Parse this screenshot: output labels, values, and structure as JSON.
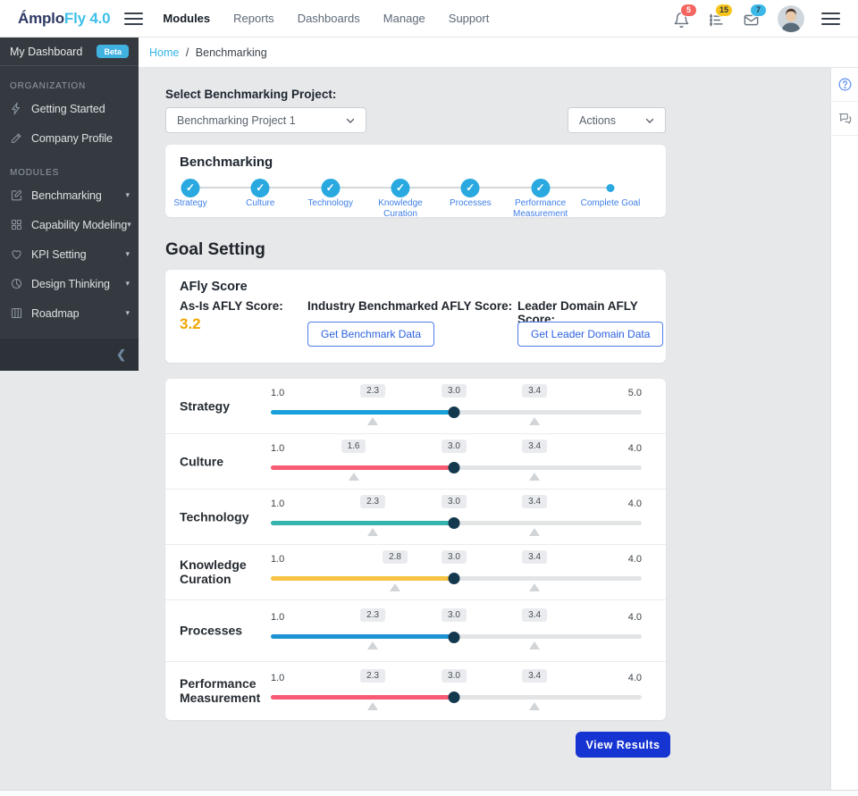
{
  "topnav": {
    "logo_part1": "Ámplo",
    "logo_part2": "Fly 4.0",
    "nav_items": [
      {
        "label": "Modules",
        "active": true
      },
      {
        "label": "Reports",
        "active": false
      },
      {
        "label": "Dashboards",
        "active": false
      },
      {
        "label": "Manage",
        "active": false
      },
      {
        "label": "Support",
        "active": false
      }
    ],
    "notifications": [
      {
        "icon": "bell-icon",
        "count": "5",
        "badge_color": "#f4655f",
        "text_color": "#ffffff"
      },
      {
        "icon": "checklist-icon",
        "count": "15",
        "badge_color": "#f8c51c",
        "text_color": "#34393f"
      },
      {
        "icon": "mail-icon",
        "count": "7",
        "badge_color": "#3bb8e8",
        "text_color": "#34393f"
      }
    ]
  },
  "breadcrumb": {
    "home": "Home",
    "separator": "/",
    "current": "Benchmarking"
  },
  "sidebar": {
    "dashboard_label": "My Dashboard",
    "beta_badge": "Beta",
    "sections": [
      {
        "title": "ORGANIZATION",
        "items": [
          {
            "label": "Getting Started",
            "icon": "lightning-icon",
            "caret": false
          },
          {
            "label": "Company Profile",
            "icon": "pencil-icon",
            "caret": false
          }
        ]
      },
      {
        "title": "MODULES",
        "items": [
          {
            "label": "Benchmarking",
            "icon": "edit-square-icon",
            "caret": true
          },
          {
            "label": "Capability Modeling",
            "icon": "grid-icon",
            "caret": true
          },
          {
            "label": "KPI Setting",
            "icon": "kpi-icon",
            "caret": true
          },
          {
            "label": "Design Thinking",
            "icon": "pie-icon",
            "caret": true
          },
          {
            "label": "Roadmap",
            "icon": "kanban-icon",
            "caret": true
          }
        ]
      }
    ]
  },
  "project_select": {
    "label": "Select Benchmarking Project:",
    "value": "Benchmarking Project 1"
  },
  "actions_select": {
    "value": "Actions"
  },
  "stepper": {
    "title": "Benchmarking",
    "accent_color": "#29a9e0",
    "steps": [
      {
        "label": "Strategy",
        "state": "done"
      },
      {
        "label": "Culture",
        "state": "done"
      },
      {
        "label": "Technology",
        "state": "done"
      },
      {
        "label": "Knowledge Curation",
        "state": "done"
      },
      {
        "label": "Processes",
        "state": "done"
      },
      {
        "label": "Performance Measurement",
        "state": "done"
      },
      {
        "label": "Complete Goal",
        "state": "current"
      }
    ]
  },
  "goal_setting": {
    "heading": "Goal Setting",
    "afly": {
      "title": "AFly Score",
      "as_is_label": "As-Is AFLY Score:",
      "as_is_value": "3.2",
      "as_is_color": "#f0a500",
      "industry_label": "Industry Benchmarked AFLY Score:",
      "industry_button": "Get Benchmark Data",
      "leader_label": "Leader Domain AFLY Score:",
      "leader_button": "Get Leader Domain Data"
    }
  },
  "sliders": {
    "handle_color": "#14384e",
    "rows": [
      {
        "label": "Strategy",
        "min": "1.0",
        "max": "5.0",
        "value": 3.0,
        "color": "#18a0da",
        "handle_pos": 49.4,
        "markers": [
          {
            "value": "2.3",
            "pos": 27.5,
            "triangle": true
          },
          {
            "value": "3.0",
            "pos": 49.4,
            "triangle": false
          },
          {
            "value": "3.4",
            "pos": 71.1,
            "triangle": true
          }
        ]
      },
      {
        "label": "Culture",
        "min": "1.0",
        "max": "4.0",
        "value": 3.0,
        "color": "#f85b73",
        "handle_pos": 49.4,
        "markers": [
          {
            "value": "1.6",
            "pos": 22.3,
            "triangle": true
          },
          {
            "value": "3.0",
            "pos": 49.4,
            "triangle": false
          },
          {
            "value": "3.4",
            "pos": 71.1,
            "triangle": true
          }
        ]
      },
      {
        "label": "Technology",
        "min": "1.0",
        "max": "4.0",
        "value": 3.0,
        "color": "#35b3ad",
        "handle_pos": 49.4,
        "markers": [
          {
            "value": "2.3",
            "pos": 27.5,
            "triangle": true
          },
          {
            "value": "3.0",
            "pos": 49.4,
            "triangle": false
          },
          {
            "value": "3.4",
            "pos": 71.1,
            "triangle": true
          }
        ]
      },
      {
        "label": "Knowledge Curation",
        "min": "1.0",
        "max": "4.0",
        "value": 3.0,
        "color": "#f6c343",
        "handle_pos": 49.4,
        "markers": [
          {
            "value": "2.8",
            "pos": 33.5,
            "triangle": true
          },
          {
            "value": "3.0",
            "pos": 49.4,
            "triangle": false
          },
          {
            "value": "3.4",
            "pos": 71.1,
            "triangle": true
          }
        ]
      },
      {
        "label": "Processes",
        "min": "1.0",
        "max": "4.0",
        "value": 3.0,
        "color": "#1d93d4",
        "handle_pos": 49.4,
        "markers": [
          {
            "value": "2.3",
            "pos": 27.5,
            "triangle": true
          },
          {
            "value": "3.0",
            "pos": 49.4,
            "triangle": false
          },
          {
            "value": "3.4",
            "pos": 71.1,
            "triangle": true
          }
        ]
      },
      {
        "label": "Performance Measurement",
        "min": "1.0",
        "max": "4.0",
        "value": 3.0,
        "color": "#f85b73",
        "handle_pos": 49.4,
        "markers": [
          {
            "value": "2.3",
            "pos": 27.5,
            "triangle": true
          },
          {
            "value": "3.0",
            "pos": 49.4,
            "triangle": false
          },
          {
            "value": "3.4",
            "pos": 71.1,
            "triangle": true
          }
        ]
      }
    ]
  },
  "view_results": {
    "label": "View Results",
    "color": "#1634d1"
  },
  "right_rail": {
    "icons": [
      {
        "icon": "help-icon"
      },
      {
        "icon": "chat-icon"
      }
    ]
  },
  "sidebar_footer": {
    "collapse_glyph": "❮"
  }
}
